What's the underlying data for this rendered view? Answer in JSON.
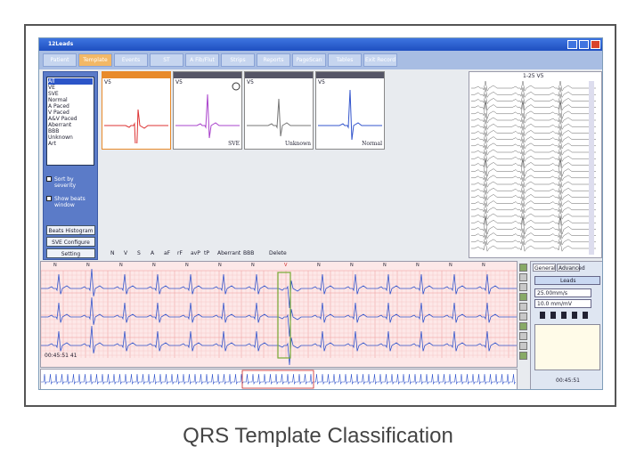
{
  "window": {
    "title": "12Leads"
  },
  "tabs": [
    "Patient",
    "Template",
    "Events",
    "ST",
    "A Fib/Flut",
    "Strips",
    "Reports",
    "PageScan",
    "Tables",
    "Exit Record"
  ],
  "active_tab": 1,
  "filter": {
    "items": [
      "All",
      "VE",
      "SVE",
      "Normal",
      "A Paced",
      "V Paced",
      "A&V Paced",
      "Aberrant",
      "BBB",
      "Unknown",
      "Art"
    ],
    "checkboxes": [
      "Sort by severity",
      "Show beats window"
    ],
    "buttons": [
      "Beats Histogram",
      "SVE Configure",
      "Setting"
    ]
  },
  "templates": [
    {
      "lead": "V5"
    },
    {
      "lead": "V5",
      "label": "SVE"
    },
    {
      "lead": "V5",
      "label": "Unknown"
    },
    {
      "lead": "V5",
      "label": "Normal"
    }
  ],
  "class_bar": [
    "N",
    "V",
    "S",
    "A",
    "aF",
    "rF",
    "avP",
    "tP",
    "Aberrant",
    "BBB",
    "Delete"
  ],
  "strip_panel": {
    "title": "1-25 V5"
  },
  "ecg": {
    "beat_labels": [
      "N",
      "N",
      "N",
      "N",
      "N",
      "N",
      "N",
      "V",
      "N",
      "N",
      "N",
      "N",
      "N",
      "N"
    ],
    "time": "00:45:51 41"
  },
  "controls": {
    "tabs": [
      "General",
      "Advanced"
    ],
    "leads": "Leads",
    "speed": "25.00mm/s",
    "gain": "10.0 mm/mV",
    "time": "00:45:51"
  },
  "caption": "QRS Template Classification"
}
